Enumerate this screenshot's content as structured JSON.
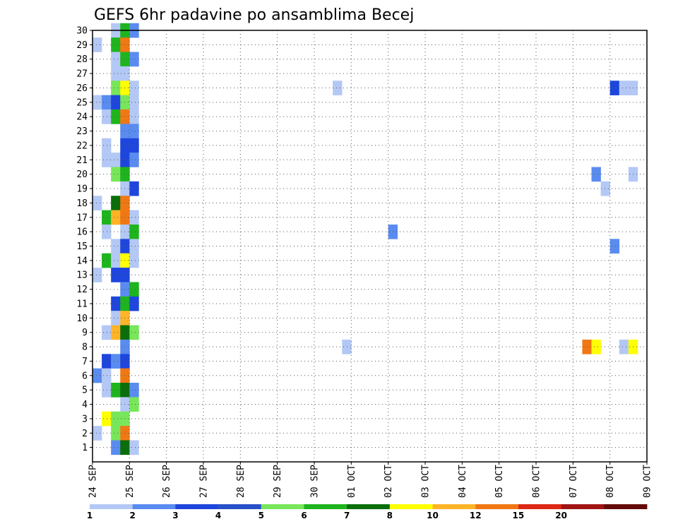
{
  "chart_data": {
    "type": "heatmap",
    "title": "GEFS 6hr padavine po ansamblima Becej",
    "xlabel": "",
    "ylabel": "",
    "y_ticks": [
      "1",
      "2",
      "3",
      "4",
      "5",
      "6",
      "7",
      "8",
      "9",
      "10",
      "11",
      "12",
      "13",
      "14",
      "15",
      "16",
      "17",
      "18",
      "19",
      "20",
      "21",
      "22",
      "23",
      "24",
      "25",
      "26",
      "27",
      "28",
      "29",
      "30"
    ],
    "x_ticks": [
      "24 SEP",
      "25 SEP",
      "26 SEP",
      "27 SEP",
      "28 SEP",
      "29 SEP",
      "30 SEP",
      "01 OCT",
      "02 OCT",
      "03 OCT",
      "04 OCT",
      "05 OCT",
      "06 OCT",
      "07 OCT",
      "08 OCT",
      "09 OCT"
    ],
    "x_range_steps": [
      0,
      60
    ],
    "y_range": [
      0,
      30
    ],
    "time_step_hours": 6,
    "grid": "dotted",
    "colorbar": {
      "placement": "bottom",
      "tick_labels": [
        "1",
        "2",
        "3",
        "4",
        "5",
        "6",
        "7",
        "8",
        "10",
        "12",
        "15",
        "20"
      ],
      "colors": [
        "#b4c8f5",
        "#5a8cf0",
        "#1e46dc",
        "#2850c8",
        "#78e65a",
        "#1eb41e",
        "#0a6e0a",
        "#ffff00",
        "#ffb428",
        "#f07814",
        "#dc2814",
        "#a01414",
        "#640a0a"
      ]
    },
    "cells": [
      {
        "member": 30,
        "step": 2,
        "color": "#b4c8f5"
      },
      {
        "member": 30,
        "step": 3,
        "color": "#1eb41e"
      },
      {
        "member": 30,
        "step": 4,
        "color": "#5a8cf0"
      },
      {
        "member": 29,
        "step": 0,
        "color": "#b4c8f5"
      },
      {
        "member": 29,
        "step": 2,
        "color": "#1eb41e"
      },
      {
        "member": 29,
        "step": 3,
        "color": "#f07814"
      },
      {
        "member": 28,
        "step": 2,
        "color": "#b4c8f5"
      },
      {
        "member": 28,
        "step": 3,
        "color": "#1eb41e"
      },
      {
        "member": 28,
        "step": 4,
        "color": "#5a8cf0"
      },
      {
        "member": 27,
        "step": 2,
        "color": "#b4c8f5"
      },
      {
        "member": 27,
        "step": 3,
        "color": "#b4c8f5"
      },
      {
        "member": 26,
        "step": 2,
        "color": "#78e65a"
      },
      {
        "member": 26,
        "step": 3,
        "color": "#ffff00"
      },
      {
        "member": 26,
        "step": 4,
        "color": "#b4c8f5"
      },
      {
        "member": 26,
        "step": 26,
        "color": "#b4c8f5"
      },
      {
        "member": 26,
        "step": 56,
        "color": "#1e46dc"
      },
      {
        "member": 26,
        "step": 57,
        "color": "#b4c8f5"
      },
      {
        "member": 26,
        "step": 58,
        "color": "#b4c8f5"
      },
      {
        "member": 25,
        "step": 0,
        "color": "#b4c8f5"
      },
      {
        "member": 25,
        "step": 1,
        "color": "#5a8cf0"
      },
      {
        "member": 25,
        "step": 2,
        "color": "#1e46dc"
      },
      {
        "member": 25,
        "step": 3,
        "color": "#78e65a"
      },
      {
        "member": 25,
        "step": 4,
        "color": "#b4c8f5"
      },
      {
        "member": 24,
        "step": 1,
        "color": "#b4c8f5"
      },
      {
        "member": 24,
        "step": 2,
        "color": "#1eb41e"
      },
      {
        "member": 24,
        "step": 3,
        "color": "#f07814"
      },
      {
        "member": 24,
        "step": 4,
        "color": "#b4c8f5"
      },
      {
        "member": 23,
        "step": 3,
        "color": "#5a8cf0"
      },
      {
        "member": 23,
        "step": 4,
        "color": "#5a8cf0"
      },
      {
        "member": 22,
        "step": 1,
        "color": "#b4c8f5"
      },
      {
        "member": 22,
        "step": 3,
        "color": "#1e46dc"
      },
      {
        "member": 22,
        "step": 4,
        "color": "#1e46dc"
      },
      {
        "member": 21,
        "step": 1,
        "color": "#b4c8f5"
      },
      {
        "member": 21,
        "step": 2,
        "color": "#b4c8f5"
      },
      {
        "member": 21,
        "step": 3,
        "color": "#1e46dc"
      },
      {
        "member": 21,
        "step": 4,
        "color": "#5a8cf0"
      },
      {
        "member": 20,
        "step": 2,
        "color": "#78e65a"
      },
      {
        "member": 20,
        "step": 3,
        "color": "#1eb41e"
      },
      {
        "member": 20,
        "step": 54,
        "color": "#5a8cf0"
      },
      {
        "member": 20,
        "step": 58,
        "color": "#b4c8f5"
      },
      {
        "member": 19,
        "step": 3,
        "color": "#b4c8f5"
      },
      {
        "member": 19,
        "step": 4,
        "color": "#1e46dc"
      },
      {
        "member": 19,
        "step": 55,
        "color": "#b4c8f5"
      },
      {
        "member": 18,
        "step": 0,
        "color": "#b4c8f5"
      },
      {
        "member": 18,
        "step": 2,
        "color": "#0a6e0a"
      },
      {
        "member": 18,
        "step": 3,
        "color": "#f07814"
      },
      {
        "member": 17,
        "step": 1,
        "color": "#1eb41e"
      },
      {
        "member": 17,
        "step": 2,
        "color": "#ffb428"
      },
      {
        "member": 17,
        "step": 3,
        "color": "#f07814"
      },
      {
        "member": 17,
        "step": 4,
        "color": "#b4c8f5"
      },
      {
        "member": 16,
        "step": 1,
        "color": "#b4c8f5"
      },
      {
        "member": 16,
        "step": 3,
        "color": "#b4c8f5"
      },
      {
        "member": 16,
        "step": 4,
        "color": "#1eb41e"
      },
      {
        "member": 16,
        "step": 32,
        "color": "#5a8cf0"
      },
      {
        "member": 15,
        "step": 2,
        "color": "#b4c8f5"
      },
      {
        "member": 15,
        "step": 3,
        "color": "#1e46dc"
      },
      {
        "member": 15,
        "step": 4,
        "color": "#b4c8f5"
      },
      {
        "member": 15,
        "step": 56,
        "color": "#5a8cf0"
      },
      {
        "member": 14,
        "step": 1,
        "color": "#1eb41e"
      },
      {
        "member": 14,
        "step": 2,
        "color": "#b4c8f5"
      },
      {
        "member": 14,
        "step": 3,
        "color": "#ffff00"
      },
      {
        "member": 14,
        "step": 4,
        "color": "#b4c8f5"
      },
      {
        "member": 13,
        "step": 0,
        "color": "#b4c8f5"
      },
      {
        "member": 13,
        "step": 2,
        "color": "#1e46dc"
      },
      {
        "member": 13,
        "step": 3,
        "color": "#1e46dc"
      },
      {
        "member": 12,
        "step": 3,
        "color": "#5a8cf0"
      },
      {
        "member": 12,
        "step": 4,
        "color": "#1eb41e"
      },
      {
        "member": 11,
        "step": 2,
        "color": "#1e46dc"
      },
      {
        "member": 11,
        "step": 3,
        "color": "#1eb41e"
      },
      {
        "member": 11,
        "step": 4,
        "color": "#1e46dc"
      },
      {
        "member": 10,
        "step": 2,
        "color": "#b4c8f5"
      },
      {
        "member": 10,
        "step": 3,
        "color": "#ffb428"
      },
      {
        "member": 9,
        "step": 1,
        "color": "#b4c8f5"
      },
      {
        "member": 9,
        "step": 2,
        "color": "#ffb428"
      },
      {
        "member": 9,
        "step": 3,
        "color": "#0a6e0a"
      },
      {
        "member": 9,
        "step": 4,
        "color": "#78e65a"
      },
      {
        "member": 8,
        "step": 3,
        "color": "#5a8cf0"
      },
      {
        "member": 8,
        "step": 27,
        "color": "#b4c8f5"
      },
      {
        "member": 8,
        "step": 53,
        "color": "#f07814"
      },
      {
        "member": 8,
        "step": 54,
        "color": "#ffff00"
      },
      {
        "member": 8,
        "step": 57,
        "color": "#b4c8f5"
      },
      {
        "member": 8,
        "step": 58,
        "color": "#ffff00"
      },
      {
        "member": 7,
        "step": 1,
        "color": "#1e46dc"
      },
      {
        "member": 7,
        "step": 2,
        "color": "#5a8cf0"
      },
      {
        "member": 7,
        "step": 3,
        "color": "#1e46dc"
      },
      {
        "member": 6,
        "step": 0,
        "color": "#5a8cf0"
      },
      {
        "member": 6,
        "step": 1,
        "color": "#b4c8f5"
      },
      {
        "member": 6,
        "step": 3,
        "color": "#f07814"
      },
      {
        "member": 5,
        "step": 1,
        "color": "#b4c8f5"
      },
      {
        "member": 5,
        "step": 2,
        "color": "#1eb41e"
      },
      {
        "member": 5,
        "step": 3,
        "color": "#0a6e0a"
      },
      {
        "member": 5,
        "step": 4,
        "color": "#5a8cf0"
      },
      {
        "member": 4,
        "step": 3,
        "color": "#b4c8f5"
      },
      {
        "member": 4,
        "step": 4,
        "color": "#78e65a"
      },
      {
        "member": 3,
        "step": 1,
        "color": "#ffff00"
      },
      {
        "member": 3,
        "step": 2,
        "color": "#78e65a"
      },
      {
        "member": 3,
        "step": 3,
        "color": "#78e65a"
      },
      {
        "member": 2,
        "step": 0,
        "color": "#b4c8f5"
      },
      {
        "member": 2,
        "step": 2,
        "color": "#78e65a"
      },
      {
        "member": 2,
        "step": 3,
        "color": "#f07814"
      },
      {
        "member": 1,
        "step": 2,
        "color": "#5a8cf0"
      },
      {
        "member": 1,
        "step": 3,
        "color": "#0a6e0a"
      },
      {
        "member": 1,
        "step": 4,
        "color": "#b4c8f5"
      }
    ]
  }
}
